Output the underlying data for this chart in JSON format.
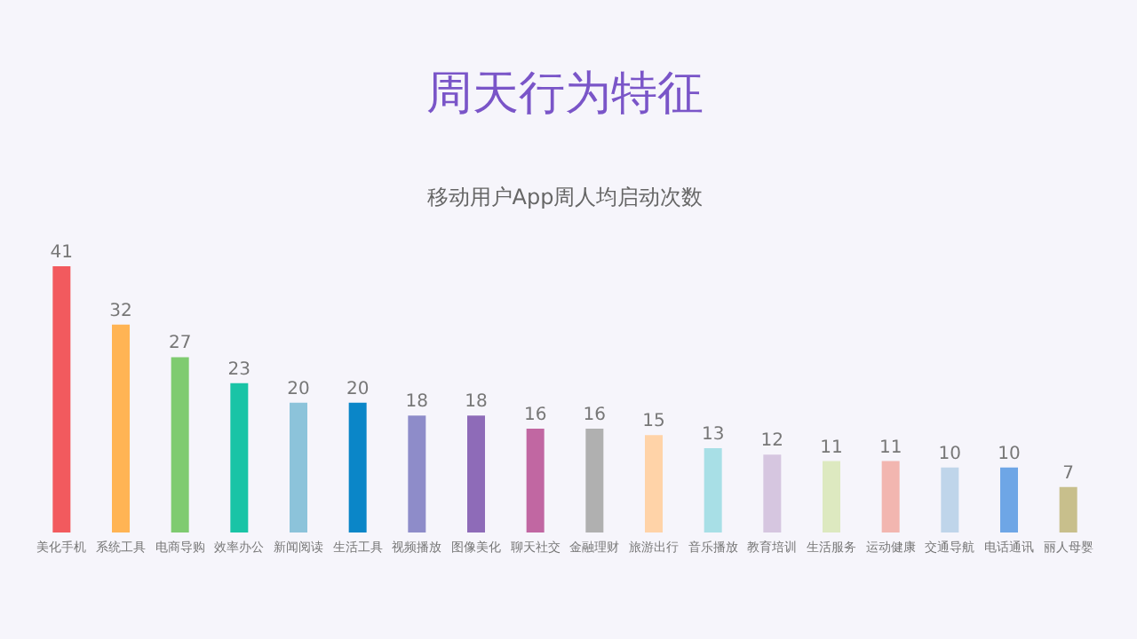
{
  "chart_data": {
    "type": "bar",
    "title": "周天行为特征",
    "subtitle": "移动用户App周人均启动次数",
    "categories": [
      "美化手机",
      "系统工具",
      "电商导购",
      "效率办公",
      "新闻阅读",
      "生活工具",
      "视频播放",
      "图像美化",
      "聊天社交",
      "金融理财",
      "旅游出行",
      "音乐播放",
      "教育培训",
      "生活服务",
      "运动健康",
      "交通导航",
      "电话通讯",
      "丽人母婴"
    ],
    "values": [
      41,
      32,
      27,
      23,
      20,
      20,
      18,
      18,
      16,
      16,
      15,
      13,
      12,
      11,
      11,
      10,
      10,
      7
    ],
    "colors": [
      "#f25a5e",
      "#ffb454",
      "#7fcb70",
      "#19c4a6",
      "#8cc3da",
      "#0a86c8",
      "#8e8cc9",
      "#8e6bb8",
      "#c167a2",
      "#b0b0b0",
      "#ffd3a8",
      "#a8dfe6",
      "#d6c6e0",
      "#dde9c0",
      "#f2b6b0",
      "#bfd5ea",
      "#6ea6e6",
      "#c8bf8c"
    ],
    "data_labels": true
  }
}
